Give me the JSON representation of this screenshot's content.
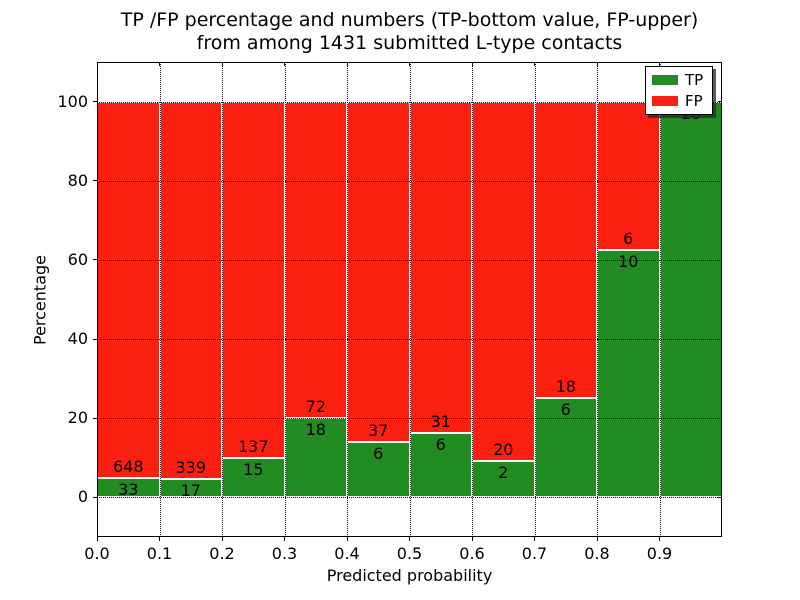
{
  "chart_data": {
    "type": "bar",
    "stacked": true,
    "normalized": "each bin stacked to 100%",
    "title": "TP /FP percentage and numbers (TP-bottom value, FP-upper)\nfrom among 1431 submitted L-type contacts",
    "title_lines": [
      "TP /FP percentage and numbers (TP-bottom value, FP-upper)",
      "from among 1431 submitted L-type contacts"
    ],
    "xlabel": "Predicted probability",
    "ylabel": "Percentage",
    "xlim": [
      0.0,
      1.0
    ],
    "ylim": [
      -10,
      110
    ],
    "bin_width": 0.1,
    "grid": true,
    "legend_position": "upper-right",
    "x_tick_labels": [
      "0.0",
      "0.1",
      "0.2",
      "0.3",
      "0.4",
      "0.5",
      "0.6",
      "0.7",
      "0.8",
      "0.9"
    ],
    "y_tick_values": [
      0,
      20,
      40,
      60,
      80,
      100
    ],
    "y_tick_labels": [
      "0",
      "20",
      "40",
      "60",
      "80",
      "100"
    ],
    "bins_start": [
      0.0,
      0.1,
      0.2,
      0.3,
      0.4,
      0.5,
      0.6,
      0.7,
      0.8,
      0.9
    ],
    "series": [
      {
        "name": "TP",
        "color": "#228B22",
        "counts": [
          33,
          17,
          15,
          18,
          6,
          6,
          2,
          6,
          10,
          10
        ]
      },
      {
        "name": "FP",
        "color": "#FB1F12",
        "counts": [
          648,
          339,
          137,
          72,
          37,
          31,
          20,
          18,
          6,
          0
        ]
      }
    ],
    "tp_percent": [
      4.8,
      4.8,
      9.9,
      20.0,
      14.0,
      16.2,
      9.1,
      25.0,
      62.5,
      100.0
    ],
    "total_contacts": 1431
  },
  "colors": {
    "tp_green": "#228B22",
    "fp_red": "#FB1F12",
    "bar_edge": "#FFFFFF",
    "grid": "#111111",
    "text": "#000000",
    "background": "#FFFFFF"
  }
}
